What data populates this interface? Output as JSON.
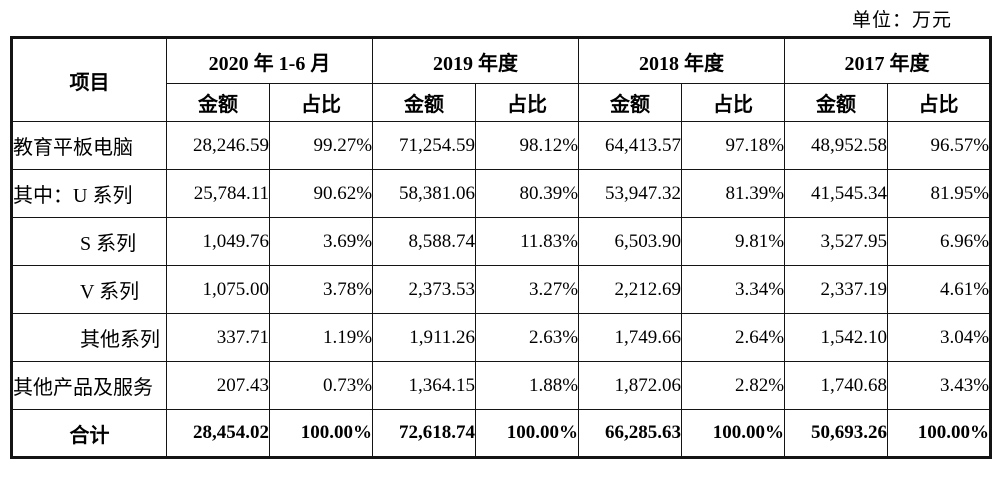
{
  "unit_label": "单位：万元",
  "colors": {
    "border": "#141414",
    "text": "#000000",
    "background": "#ffffff"
  },
  "table": {
    "item_header": "项目",
    "amount_label": "金额",
    "ratio_label": "占比",
    "periods": [
      "2020 年 1-6 月",
      "2019 年度",
      "2018 年度",
      "2017 年度"
    ],
    "rows": [
      {
        "name": "教育平板电脑",
        "values": [
          "28,246.59",
          "99.27%",
          "71,254.59",
          "98.12%",
          "64,413.57",
          "97.18%",
          "48,952.58",
          "96.57%"
        ]
      },
      {
        "name": "其中：U 系列",
        "values": [
          "25,784.11",
          "90.62%",
          "58,381.06",
          "80.39%",
          "53,947.32",
          "81.39%",
          "41,545.34",
          "81.95%"
        ]
      },
      {
        "name": "S 系列",
        "values": [
          "1,049.76",
          "3.69%",
          "8,588.74",
          "11.83%",
          "6,503.90",
          "9.81%",
          "3,527.95",
          "6.96%"
        ]
      },
      {
        "name": "V 系列",
        "values": [
          "1,075.00",
          "3.78%",
          "2,373.53",
          "3.27%",
          "2,212.69",
          "3.34%",
          "2,337.19",
          "4.61%"
        ]
      },
      {
        "name": "其他系列",
        "values": [
          "337.71",
          "1.19%",
          "1,911.26",
          "2.63%",
          "1,749.66",
          "2.64%",
          "1,542.10",
          "3.04%"
        ]
      },
      {
        "name": "其他产品及服务",
        "values": [
          "207.43",
          "0.73%",
          "1,364.15",
          "1.88%",
          "1,872.06",
          "2.82%",
          "1,740.68",
          "3.43%"
        ]
      }
    ],
    "total": {
      "name": "合计",
      "values": [
        "28,454.02",
        "100.00%",
        "72,618.74",
        "100.00%",
        "66,285.63",
        "100.00%",
        "50,693.26",
        "100.00%"
      ]
    }
  }
}
